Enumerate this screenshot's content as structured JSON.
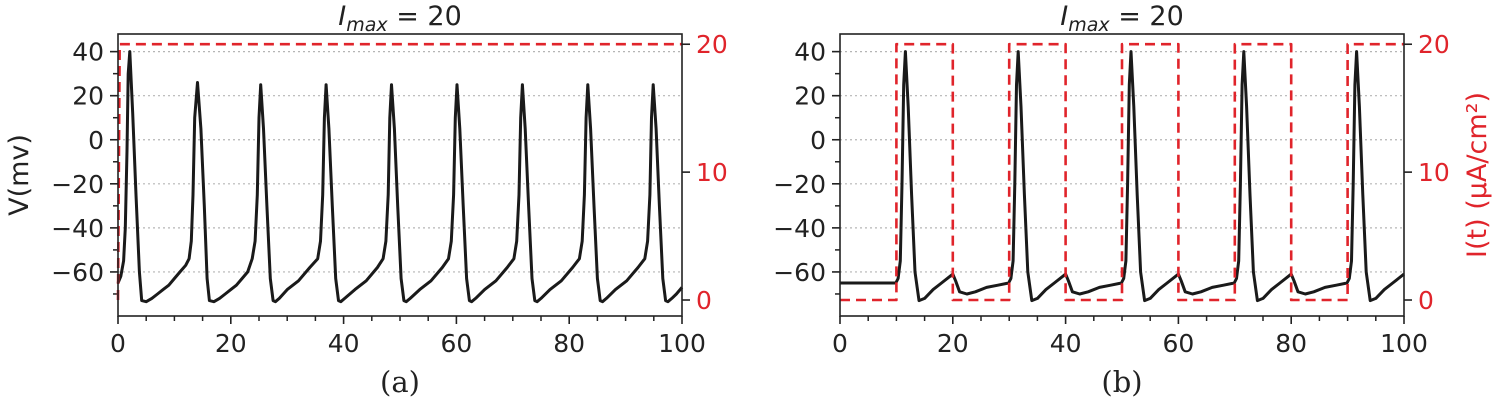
{
  "colors": {
    "voltage": "#1a1a1a",
    "current": "#e0242b",
    "grid": "#b5b5b5",
    "axis": "#222222"
  },
  "chart_data": [
    {
      "type": "line",
      "panel_label": "(a)",
      "title": {
        "var": "I",
        "sub": "max",
        "rest": " = 20"
      },
      "xlabel": "",
      "ylabel": "V(mv)",
      "y2label": "",
      "xlim": [
        0,
        100
      ],
      "ylim": [
        -80,
        48
      ],
      "y2lim": [
        -1.25,
        20.8
      ],
      "x_ticks": [
        "0",
        "20",
        "40",
        "60",
        "80",
        "100"
      ],
      "y_ticks": [
        "40",
        "20",
        "0",
        "−20",
        "−40",
        "−60"
      ],
      "y2_ticks": [
        "20",
        "10",
        "0"
      ],
      "grid": "horizontal dotted",
      "series": [
        {
          "axis": "left",
          "style": "solid",
          "x": [
            0,
            0.5,
            1,
            1.3,
            1.6,
            1.8,
            2.1,
            2.6,
            3.2,
            3.8,
            4.2,
            5,
            6,
            7,
            8,
            9,
            10,
            11,
            12,
            12.6,
            13,
            13.3,
            13.6,
            14.1,
            14.7,
            15.3,
            15.8,
            16.2,
            17,
            18,
            19,
            20,
            21,
            22,
            23,
            23.8,
            24.3,
            24.7,
            25,
            25.3,
            25.8,
            26.4,
            27,
            27.5,
            27.9,
            28.6,
            30,
            32,
            34,
            35.4,
            35.9,
            36.3,
            36.6,
            36.9,
            37.4,
            38,
            38.6,
            39.1,
            39.5,
            40.2,
            42,
            44,
            46,
            47,
            47.5,
            47.9,
            48.2,
            48.5,
            49,
            49.6,
            50.2,
            50.7,
            51.1,
            51.8,
            53.5,
            55.5,
            57.5,
            58.6,
            59.1,
            59.5,
            59.8,
            60.1,
            60.6,
            61.2,
            61.8,
            62.3,
            62.7,
            63.4,
            65,
            67,
            69,
            70.2,
            70.7,
            71.1,
            71.4,
            71.7,
            72.2,
            72.8,
            73.4,
            73.9,
            74.3,
            75,
            76.6,
            78.6,
            80.6,
            81.8,
            82.3,
            82.7,
            83,
            83.3,
            83.8,
            84.4,
            85,
            85.5,
            85.9,
            86.6,
            88.2,
            90.2,
            92.2,
            93.4,
            93.9,
            94.3,
            94.6,
            94.9,
            95.4,
            96,
            96.6,
            97.1,
            97.5,
            98.2,
            99,
            100
          ],
          "y": [
            -65,
            -62,
            -55,
            -40,
            -5,
            30,
            40,
            12,
            -25,
            -60,
            -73,
            -73.5,
            -72,
            -70,
            -68,
            -66,
            -63,
            -60,
            -57,
            -54,
            -46,
            -25,
            10,
            26,
            5,
            -30,
            -63,
            -73,
            -73.5,
            -72,
            -70,
            -68,
            -66,
            -63,
            -60,
            -54,
            -46,
            -25,
            10,
            25,
            5,
            -30,
            -63,
            -73,
            -73.5,
            -72,
            -68,
            -64,
            -58,
            -54,
            -46,
            -25,
            10,
            25,
            5,
            -30,
            -63,
            -73,
            -73.5,
            -72,
            -68,
            -64,
            -58,
            -54,
            -46,
            -25,
            10,
            25,
            5,
            -30,
            -63,
            -73,
            -73.5,
            -72,
            -68,
            -64,
            -58,
            -54,
            -46,
            -25,
            10,
            25,
            5,
            -30,
            -63,
            -73,
            -73.5,
            -72,
            -68,
            -64,
            -58,
            -54,
            -46,
            -25,
            10,
            25,
            5,
            -30,
            -63,
            -73,
            -73.5,
            -72,
            -68,
            -64,
            -58,
            -54,
            -46,
            -25,
            10,
            25,
            5,
            -30,
            -63,
            -73,
            -73.5,
            -72,
            -68,
            -64,
            -58,
            -54,
            -46,
            -25,
            10,
            25,
            5,
            -30,
            -63,
            -73,
            -73.5,
            -72,
            -70,
            -67
          ]
        },
        {
          "axis": "right",
          "style": "dashed",
          "x": [
            0,
            0.3,
            100
          ],
          "y": [
            0,
            20,
            20
          ]
        }
      ]
    },
    {
      "type": "line",
      "panel_label": "(b)",
      "title": {
        "var": "I",
        "sub": "max",
        "rest": " = 20"
      },
      "xlabel": "",
      "ylabel": "",
      "y2label": "I(t) (µA/cm²)",
      "xlim": [
        0,
        100
      ],
      "ylim": [
        -80,
        48
      ],
      "y2lim": [
        -1.25,
        20.8
      ],
      "x_ticks": [
        "0",
        "20",
        "40",
        "60",
        "80",
        "100"
      ],
      "y_ticks": [
        "40",
        "20",
        "0",
        "−20",
        "−40",
        "−60"
      ],
      "y2_ticks": [
        "20",
        "10",
        "0"
      ],
      "grid": "horizontal dotted",
      "series": [
        {
          "axis": "left",
          "style": "solid",
          "x": [
            0,
            9.9,
            10.3,
            10.7,
            11,
            11.3,
            11.6,
            12.1,
            12.7,
            13.3,
            14,
            15,
            16.5,
            18,
            19.5,
            20,
            20.5,
            21.2,
            22.5,
            24,
            26,
            28,
            29.9,
            30.3,
            30.7,
            31,
            31.3,
            31.6,
            32.1,
            32.7,
            33.3,
            34,
            35,
            36.5,
            38,
            39.5,
            40,
            40.5,
            41.2,
            42.5,
            44,
            46,
            48,
            49.9,
            50.3,
            50.7,
            51,
            51.3,
            51.6,
            52.1,
            52.7,
            53.3,
            54,
            55,
            56.5,
            58,
            59.5,
            60,
            60.5,
            61.2,
            62.5,
            64,
            66,
            68,
            69.9,
            70.3,
            70.7,
            71,
            71.3,
            71.6,
            72.1,
            72.7,
            73.3,
            74,
            75,
            76.5,
            78,
            79.5,
            80,
            80.5,
            81.2,
            82.5,
            84,
            86,
            88,
            89.9,
            90.3,
            90.7,
            91,
            91.3,
            91.6,
            92.1,
            92.7,
            93.3,
            94,
            95,
            96.5,
            98,
            99,
            100
          ],
          "y": [
            -65,
            -65,
            -63,
            -55,
            -20,
            25,
            40,
            15,
            -25,
            -60,
            -73,
            -72,
            -68,
            -65,
            -62,
            -61,
            -64,
            -69,
            -70,
            -69,
            -67,
            -66,
            -65,
            -63,
            -55,
            -20,
            25,
            40,
            15,
            -25,
            -60,
            -73,
            -72,
            -68,
            -65,
            -62,
            -61,
            -64,
            -69,
            -70,
            -69,
            -67,
            -66,
            -65,
            -63,
            -55,
            -20,
            25,
            40,
            15,
            -25,
            -60,
            -73,
            -72,
            -68,
            -65,
            -62,
            -61,
            -64,
            -69,
            -70,
            -69,
            -67,
            -66,
            -65,
            -63,
            -55,
            -20,
            25,
            40,
            15,
            -25,
            -60,
            -73,
            -72,
            -68,
            -65,
            -62,
            -61,
            -64,
            -69,
            -70,
            -69,
            -67,
            -66,
            -65,
            -63,
            -55,
            -20,
            25,
            40,
            15,
            -25,
            -60,
            -73,
            -72,
            -68,
            -65,
            -63,
            -61
          ]
        },
        {
          "axis": "right",
          "style": "dashed",
          "x": [
            0,
            10,
            10,
            20,
            20,
            30,
            30,
            40,
            40,
            50,
            50,
            60,
            60,
            70,
            70,
            80,
            80,
            90,
            90,
            100
          ],
          "y": [
            0,
            0,
            20,
            20,
            0,
            0,
            20,
            20,
            0,
            0,
            20,
            20,
            0,
            0,
            20,
            20,
            0,
            0,
            20,
            20
          ]
        }
      ]
    }
  ]
}
